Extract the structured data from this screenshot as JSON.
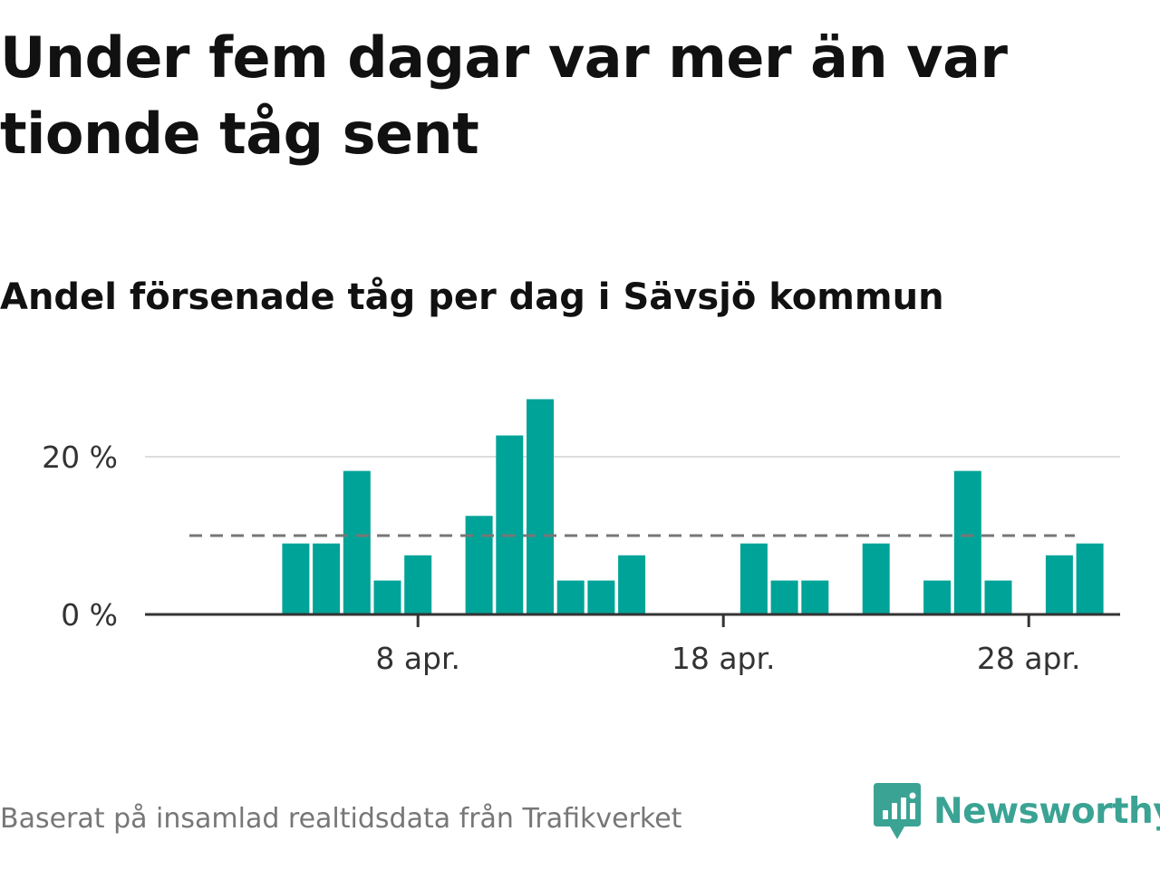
{
  "title": "Under fem dagar var mer än var tionde tåg sent",
  "subtitle": "Andel försenade tåg per dag i Sävsjö kommun",
  "source": "Baserat på insamlad realtidsdata från Trafikverket",
  "brand": {
    "name": "Newsworthy",
    "color": "#3aa394",
    "icon": "newsworthy-logo-icon"
  },
  "colors": {
    "bar": "#00a398",
    "reference_line": "#777777",
    "gridline": "#dddddd",
    "baseline": "#333333"
  },
  "chart_data": {
    "type": "bar",
    "x": [
      "2 apr.",
      "3 apr.",
      "4 apr.",
      "5 apr.",
      "6 apr.",
      "7 apr.",
      "8 apr.",
      "9 apr.",
      "10 apr.",
      "11 apr.",
      "12 apr.",
      "13 apr.",
      "14 apr.",
      "15 apr.",
      "16 apr.",
      "17 apr.",
      "18 apr.",
      "19 apr.",
      "20 apr.",
      "21 apr.",
      "22 apr.",
      "23 apr.",
      "24 apr.",
      "25 apr.",
      "26 apr.",
      "27 apr.",
      "28 apr.",
      "29 apr.",
      "30 apr."
    ],
    "values": [
      null,
      null,
      9,
      9,
      18.2,
      4.3,
      7.5,
      null,
      12.5,
      22.7,
      27.3,
      4.3,
      4.3,
      7.5,
      null,
      null,
      null,
      9,
      4.3,
      4.3,
      null,
      9,
      null,
      4.3,
      18.2,
      4.3,
      null,
      7.5,
      9
    ],
    "x_ticks": [
      "8 apr.",
      "18 apr.",
      "28 apr."
    ],
    "y_ticks": [
      0,
      20
    ],
    "y_tick_labels": [
      "0 %",
      "20 %"
    ],
    "ylim": [
      0,
      29
    ],
    "reference_line": 10,
    "gridlines": true,
    "legend": "none",
    "xlabel": "",
    "ylabel": ""
  }
}
